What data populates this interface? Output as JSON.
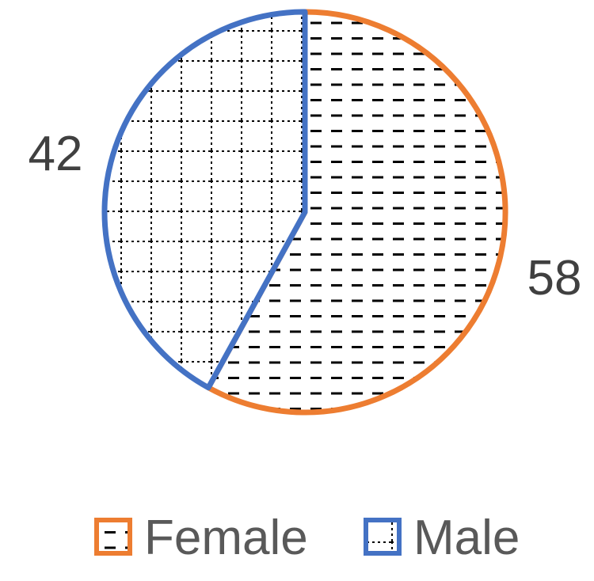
{
  "chart_data": {
    "type": "pie",
    "title": "",
    "series": [
      {
        "name": "Female",
        "value": 58,
        "label": "58",
        "color": "#ed7d31",
        "pattern": "dashed-horizontal"
      },
      {
        "name": "Male",
        "value": 42,
        "label": "42",
        "color": "#4472c4",
        "pattern": "dotted-grid"
      }
    ],
    "start_angle_deg": 0,
    "direction": "clockwise",
    "legend": {
      "position": "bottom"
    }
  }
}
